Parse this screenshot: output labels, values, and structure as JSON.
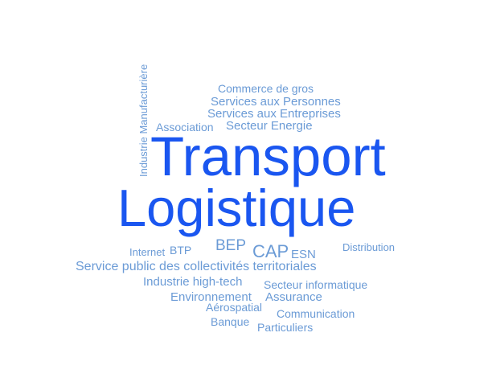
{
  "words": {
    "transport": "Transport",
    "logistique": "Logistique",
    "industrie_manufacturiere": "Industrie Manufacturière",
    "commerce_de_gros": "Commerce de gros",
    "services_aux_personnes": "Services aux Personnes",
    "services_aux_entreprises": "Services aux Entreprises",
    "association": "Association",
    "secteur_energie": "Secteur Energie",
    "internet": "Internet",
    "btp": "BTP",
    "bep": "BEP",
    "cap": "CAP",
    "esn": "ESN",
    "distribution": "Distribution",
    "service_public": "Service public des collectivités territoriales",
    "industrie_high_tech": "Industrie high-tech",
    "secteur_informatique": "Secteur informatique",
    "environnement": "Environnement",
    "assurance": "Assurance",
    "aerospatial": "Aérospatial",
    "communication": "Communication",
    "banque": "Banque",
    "particuliers": "Particuliers"
  },
  "colors": {
    "primary": "#1a56f0",
    "secondary": "#6b9bd6"
  }
}
